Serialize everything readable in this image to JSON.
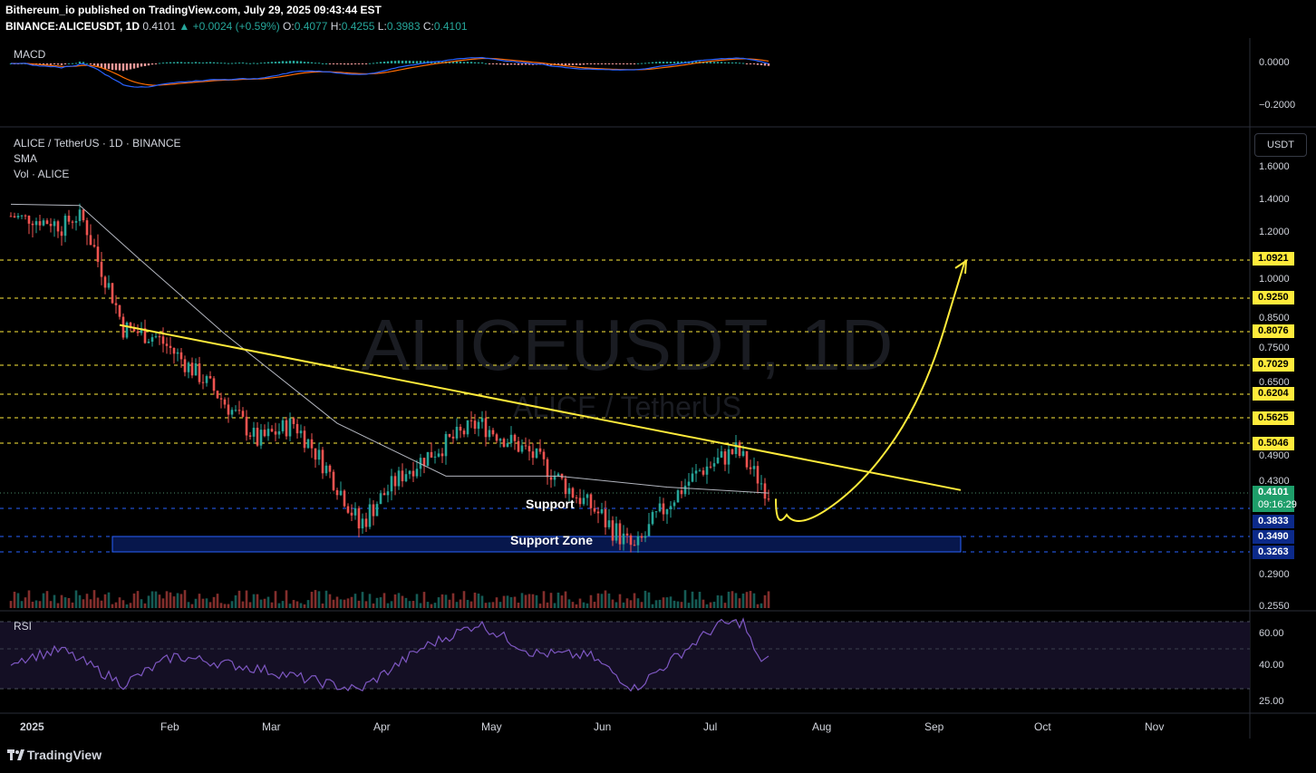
{
  "header": {
    "publisher_line": "Bithereum_io published on TradingView.com, July 29, 2025 09:43:44 EST",
    "symbol": "BINANCE:ALICEUSDT, 1D",
    "last": "0.4101",
    "change": "▲ +0.0024 (+0.59%)",
    "o_label": "O:",
    "o": "0.4077",
    "h_label": "H:",
    "h": "0.4255",
    "l_label": "L:",
    "l": "0.3983",
    "c_label": "C:",
    "c": "0.4101"
  },
  "macd_pane": {
    "label": "MACD",
    "ticks": [
      "0.0000",
      "−0.2000"
    ]
  },
  "main_pane": {
    "legend": [
      "ALICE / TetherUS · 1D · BINANCE",
      "SMA",
      "Vol · ALICE"
    ],
    "watermark": "ALICEUSDT, 1D",
    "watermark_sub": "ALICE / TetherUS",
    "currency_button": "USDT",
    "support_label": "Support",
    "support_zone_label": "Support Zone",
    "countdown": "09:16:29"
  },
  "rsi_pane": {
    "label": "RSI",
    "ticks": [
      "60.00",
      "40.00",
      "25.00"
    ]
  },
  "time_axis": [
    "2025",
    "Feb",
    "Mar",
    "Apr",
    "May",
    "Jun",
    "Jul",
    "Aug",
    "Sep",
    "Oct",
    "Nov"
  ],
  "footer": {
    "brand": "TradingView"
  },
  "colors": {
    "up": "#26a69a",
    "down": "#ef5350",
    "trend": "#ffeb3b",
    "sma": "#b2b5be",
    "zone": "#0c2a8a",
    "macd": "#2962ff",
    "signal": "#ff6d00",
    "rsi": "#7e57c2"
  },
  "chart_data": [
    {
      "type": "line",
      "title": "ALICE / TetherUS · 1D · BINANCE",
      "price_axis_ticks": [
        "1.6000",
        "1.4000",
        "1.2000",
        "1.0000",
        "0.8500",
        "0.7500",
        "0.6500",
        "0.4900",
        "0.4300",
        "0.2900",
        "0.2550"
      ],
      "ylim": [
        0.255,
        1.6
      ],
      "resistance_levels": [
        "1.0921",
        "0.9250",
        "0.8076",
        "0.7029",
        "0.6204",
        "0.5625",
        "0.5046"
      ],
      "support_levels": [
        "0.3833",
        "0.3490",
        "0.3263"
      ],
      "current_price": "0.4101",
      "close_approx": [
        {
          "x": "2025-01-01",
          "y": 1.28
        },
        {
          "x": "2025-01-15",
          "y": 1.22
        },
        {
          "x": "2025-01-20",
          "y": 1.28
        },
        {
          "x": "2025-02-01",
          "y": 0.82
        },
        {
          "x": "2025-02-10",
          "y": 0.79
        },
        {
          "x": "2025-02-25",
          "y": 0.64
        },
        {
          "x": "2025-03-10",
          "y": 0.51
        },
        {
          "x": "2025-03-20",
          "y": 0.55
        },
        {
          "x": "2025-04-07",
          "y": 0.36
        },
        {
          "x": "2025-04-20",
          "y": 0.45
        },
        {
          "x": "2025-05-10",
          "y": 0.55
        },
        {
          "x": "2025-05-25",
          "y": 0.48
        },
        {
          "x": "2025-06-05",
          "y": 0.41
        },
        {
          "x": "2025-06-22",
          "y": 0.33
        },
        {
          "x": "2025-07-10",
          "y": 0.45
        },
        {
          "x": "2025-07-20",
          "y": 0.49
        },
        {
          "x": "2025-07-29",
          "y": 0.4101
        }
      ],
      "sma_approx": [
        {
          "x": "2025-01-01",
          "y": 1.37
        },
        {
          "x": "2025-01-20",
          "y": 1.36
        },
        {
          "x": "2025-02-05",
          "y": 1.1
        },
        {
          "x": "2025-03-01",
          "y": 0.8
        },
        {
          "x": "2025-04-01",
          "y": 0.55
        },
        {
          "x": "2025-05-01",
          "y": 0.44
        },
        {
          "x": "2025-06-01",
          "y": 0.44
        },
        {
          "x": "2025-07-01",
          "y": 0.42
        },
        {
          "x": "2025-07-29",
          "y": 0.41
        }
      ],
      "trendline": [
        {
          "x": "2025-01-31",
          "y": 0.83
        },
        {
          "x": "2025-09-20",
          "y": 0.415
        }
      ],
      "support_zone": {
        "x": [
          "2025-01-29",
          "2025-09-20"
        ],
        "y": [
          0.3263,
          0.349
        ]
      },
      "projection": [
        {
          "x": "2025-07-31",
          "y": 0.4
        },
        {
          "x": "2025-08-06",
          "y": 0.356
        },
        {
          "x": "2025-08-25",
          "y": 0.43
        },
        {
          "x": "2025-09-10",
          "y": 0.62
        },
        {
          "x": "2025-09-21",
          "y": 1.08
        }
      ]
    },
    {
      "type": "line",
      "title": "MACD",
      "ylim": [
        -0.25,
        0.05
      ],
      "ticks": [
        0.0,
        -0.2
      ]
    },
    {
      "type": "line",
      "title": "RSI",
      "ylim": [
        20,
        70
      ],
      "ticks": [
        60,
        40,
        25
      ],
      "values_approx": [
        {
          "x": "2025-01-01",
          "y": 43
        },
        {
          "x": "2025-01-15",
          "y": 50
        },
        {
          "x": "2025-02-01",
          "y": 28
        },
        {
          "x": "2025-02-15",
          "y": 46
        },
        {
          "x": "2025-03-10",
          "y": 38
        },
        {
          "x": "2025-04-07",
          "y": 24
        },
        {
          "x": "2025-04-25",
          "y": 52
        },
        {
          "x": "2025-05-10",
          "y": 67
        },
        {
          "x": "2025-05-25",
          "y": 48
        },
        {
          "x": "2025-06-10",
          "y": 46
        },
        {
          "x": "2025-06-22",
          "y": 25
        },
        {
          "x": "2025-07-15",
          "y": 66
        },
        {
          "x": "2025-07-22",
          "y": 68
        },
        {
          "x": "2025-07-26",
          "y": 44
        },
        {
          "x": "2025-07-29",
          "y": 45
        }
      ]
    }
  ]
}
